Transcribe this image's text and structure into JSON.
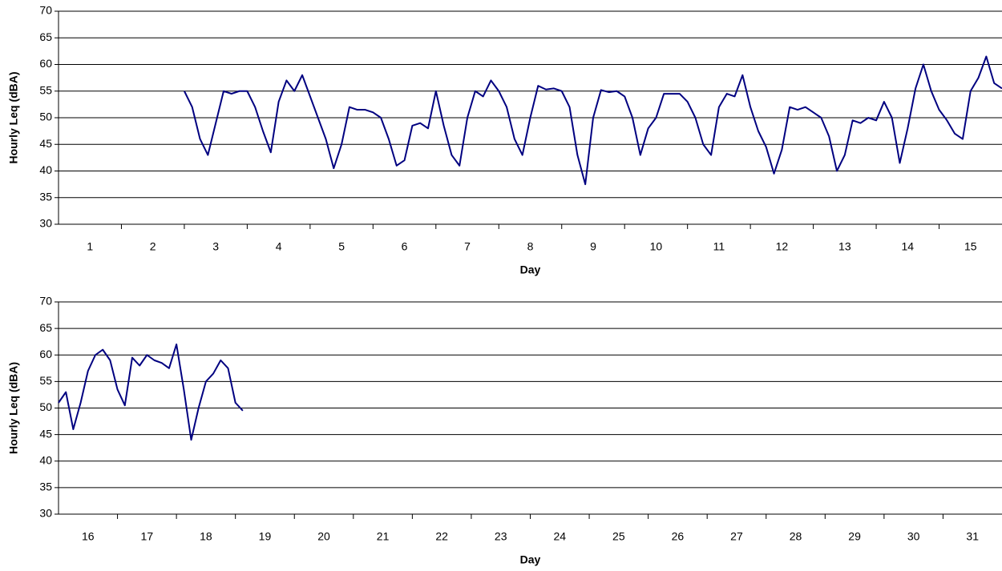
{
  "chart_data": [
    {
      "type": "line",
      "y_label": "Hourly Leq (dBA)",
      "x_label": "Day",
      "color": "#000080",
      "x": [
        2.5,
        2.625,
        2.75,
        2.875,
        3,
        3.125,
        3.25,
        3.375,
        3.5,
        3.625,
        3.75,
        3.875,
        4,
        4.125,
        4.25,
        4.375,
        4.5,
        4.625,
        4.75,
        4.875,
        5,
        5.125,
        5.25,
        5.375,
        5.5,
        5.625,
        5.75,
        5.875,
        6,
        6.125,
        6.25,
        6.375,
        6.5,
        6.625,
        6.75,
        6.875,
        7,
        7.125,
        7.25,
        7.375,
        7.5,
        7.625,
        7.75,
        7.875,
        8,
        8.125,
        8.25,
        8.375,
        8.5,
        8.625,
        8.75,
        8.875,
        9,
        9.125,
        9.25,
        9.375,
        9.5,
        9.625,
        9.75,
        9.875,
        10,
        10.125,
        10.25,
        10.375,
        10.5,
        10.625,
        10.75,
        10.875,
        11,
        11.125,
        11.25,
        11.375,
        11.5,
        11.625,
        11.75,
        11.875,
        12,
        12.125,
        12.25,
        12.375,
        12.5,
        12.625,
        12.75,
        12.875,
        13,
        13.125,
        13.25,
        13.375,
        13.5,
        13.625,
        13.75,
        13.875,
        14,
        14.125,
        14.25,
        14.375,
        14.5,
        14.625,
        14.75,
        14.875,
        15,
        15.125,
        15.25,
        15.375,
        15.5
      ],
      "values": [
        55,
        52,
        46,
        43,
        49,
        55,
        54.5,
        55,
        55,
        52,
        47.5,
        43.5,
        53,
        57,
        55,
        58,
        54,
        50,
        46,
        40.5,
        45,
        52,
        51.5,
        51.5,
        51,
        50,
        46,
        41,
        42,
        48.5,
        49,
        48,
        55,
        48.5,
        43,
        41,
        50,
        55,
        54,
        57,
        55,
        52,
        46,
        43,
        50,
        56,
        55.3,
        55.5,
        55,
        52,
        43,
        37.5,
        50,
        55.2,
        54.8,
        55,
        54,
        50,
        43,
        48,
        50,
        54.5,
        54.5,
        54.5,
        53,
        50,
        45,
        43,
        52,
        54.5,
        54,
        58,
        52,
        47.5,
        44.5,
        39.5,
        44,
        52,
        51.5,
        52,
        51,
        50,
        46.5,
        40,
        43,
        49.5,
        49,
        50,
        49.5,
        53,
        50,
        41.5,
        48,
        55.5,
        60,
        55,
        51.5,
        49.5,
        47,
        46,
        55,
        57.5,
        61.5,
        56.5,
        55.5
      ],
      "xlim": [
        0.5,
        15.5
      ],
      "xticks": [
        1,
        2,
        3,
        4,
        5,
        6,
        7,
        8,
        9,
        10,
        11,
        12,
        13,
        14,
        15
      ],
      "ylim": [
        30,
        70
      ],
      "yticks": [
        30,
        35,
        40,
        45,
        50,
        55,
        60,
        65,
        70
      ],
      "grid": true
    },
    {
      "type": "line",
      "y_label": "Hourly Leq (dBA)",
      "x_label": "Day",
      "color": "#000080",
      "x": [
        15.5,
        15.625,
        15.75,
        15.875,
        16,
        16.125,
        16.25,
        16.375,
        16.5,
        16.625,
        16.75,
        16.875,
        17,
        17.125,
        17.25,
        17.375,
        17.5,
        17.625,
        17.75,
        17.875,
        18,
        18.125,
        18.25,
        18.375,
        18.5,
        18.625
      ],
      "values": [
        51,
        53,
        46,
        51,
        57,
        60,
        61,
        59,
        53.5,
        50.5,
        59.5,
        58,
        60,
        59,
        58.5,
        57.5,
        62,
        53.5,
        44,
        50,
        55,
        56.5,
        59,
        57.5,
        51,
        49.5
      ],
      "xlim": [
        15.5,
        31.5
      ],
      "xticks": [
        16,
        17,
        18,
        19,
        20,
        21,
        22,
        23,
        24,
        25,
        26,
        27,
        28,
        29,
        30,
        31
      ],
      "ylim": [
        30,
        70
      ],
      "yticks": [
        30,
        35,
        40,
        45,
        50,
        55,
        60,
        65,
        70
      ],
      "grid": true
    }
  ]
}
